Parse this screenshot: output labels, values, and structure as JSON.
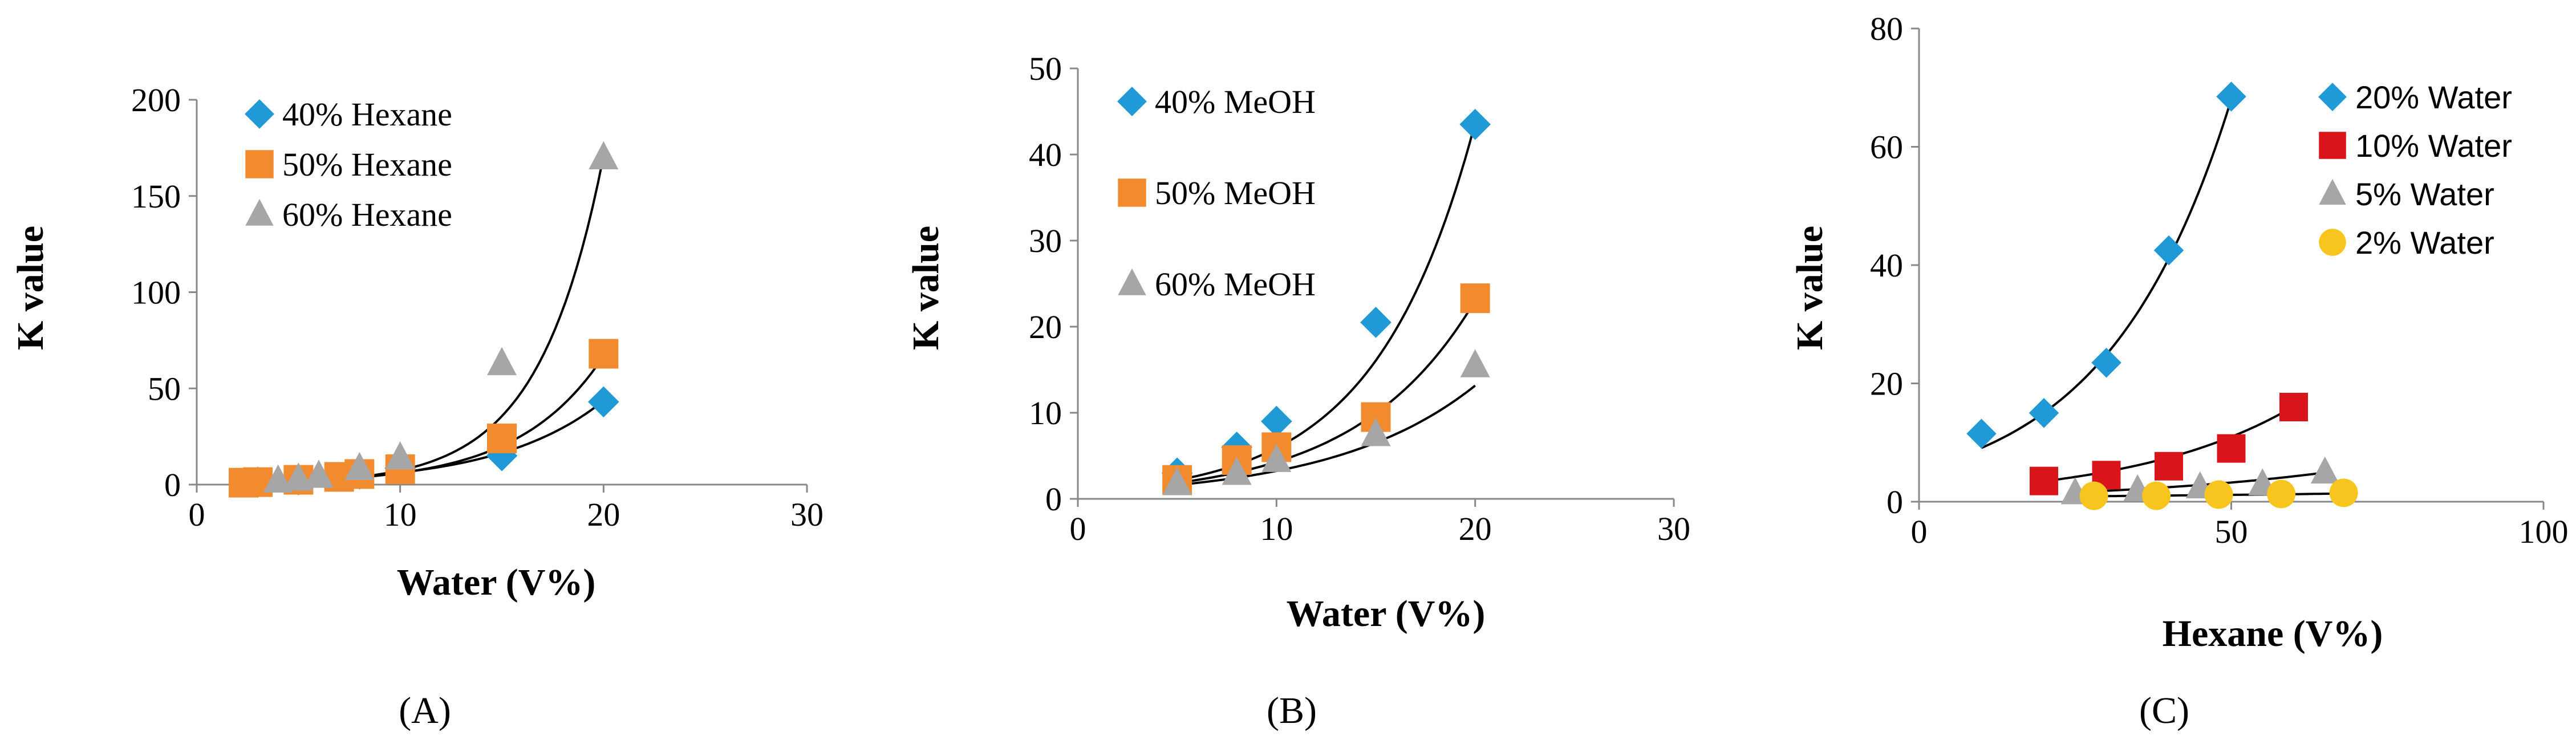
{
  "chart_data": [
    {
      "type": "scatter",
      "panel_label": "(A)",
      "xlabel": "Water  (V%)",
      "ylabel": "K value",
      "xlim": [
        0,
        30
      ],
      "ylim": [
        0,
        200
      ],
      "xticks": [
        "0",
        "10",
        "20",
        "30"
      ],
      "yticks": [
        "0",
        "50",
        "100",
        "150",
        "200"
      ],
      "legend_position": "top-left",
      "series": [
        {
          "name": "40% Hexane",
          "marker": "diamond",
          "color": "#1f9ad6",
          "x": [
            3,
            5,
            8,
            10,
            15,
            20
          ],
          "y": [
            1.2,
            2.5,
            5.5,
            8.5,
            15,
            43
          ],
          "fit": {
            "a": 0.9,
            "b": 0.194
          }
        },
        {
          "name": "50% Hexane",
          "marker": "square",
          "color": "#f28a2e",
          "x": [
            2.3,
            3,
            5,
            7,
            8,
            10,
            15,
            20
          ],
          "y": [
            1,
            1.3,
            2.5,
            4,
            5.5,
            8,
            24,
            68
          ],
          "fit": {
            "a": 0.55,
            "b": 0.24
          }
        },
        {
          "name": "60% Hexane",
          "marker": "triangle",
          "color": "#a6a6a6",
          "x": [
            4,
            5,
            6,
            8,
            10,
            15,
            20
          ],
          "y": [
            2,
            3,
            4.5,
            8.5,
            14,
            63,
            170
          ],
          "fit": {
            "a": 0.32,
            "b": 0.314
          }
        }
      ]
    },
    {
      "type": "scatter",
      "panel_label": "(B)",
      "xlabel": "Water (V%)",
      "ylabel": "K value",
      "xlim": [
        0,
        30
      ],
      "ylim": [
        0,
        50
      ],
      "xticks": [
        "0",
        "10",
        "20",
        "30"
      ],
      "yticks": [
        "0",
        "10",
        "20",
        "30",
        "40",
        "50"
      ],
      "legend_position": "top-left",
      "series": [
        {
          "name": "40% MeOH",
          "marker": "diamond",
          "color": "#1f9ad6",
          "x": [
            5,
            8,
            10,
            15,
            20
          ],
          "y": [
            3,
            6,
            9,
            20.5,
            43.5
          ],
          "fit": {
            "a": 0.8,
            "b": 0.2
          }
        },
        {
          "name": "50% MeOH",
          "marker": "square",
          "color": "#f28a2e",
          "x": [
            5,
            8,
            10,
            15,
            20
          ],
          "y": [
            2.2,
            4.5,
            6,
            9.5,
            23.3
          ],
          "fit": {
            "a": 0.8,
            "b": 0.168
          }
        },
        {
          "name": "60% MeOH",
          "marker": "triangle",
          "color": "#a6a6a6",
          "x": [
            5,
            8,
            10,
            15,
            20
          ],
          "y": [
            1.8,
            3,
            4.5,
            7.5,
            15.5
          ],
          "fit": {
            "a": 0.8,
            "b": 0.14
          }
        }
      ]
    },
    {
      "type": "scatter",
      "panel_label": "(C)",
      "xlabel": "Hexane (V%)",
      "ylabel": "K value",
      "xlim": [
        0,
        100
      ],
      "ylim": [
        0,
        80
      ],
      "xticks": [
        "0",
        "50",
        "100"
      ],
      "yticks": [
        "0",
        "20",
        "40",
        "60",
        "80"
      ],
      "legend_position": "top-right",
      "series": [
        {
          "name": "20% Water",
          "marker": "diamond",
          "color": "#1f9ad6",
          "x": [
            10,
            20,
            30,
            40,
            50
          ],
          "y": [
            11.5,
            15,
            23.5,
            42.5,
            68.5
          ],
          "fit": {
            "a": 5.5,
            "b": 0.0503
          }
        },
        {
          "name": "10% Water",
          "marker": "square",
          "color": "#d9141b",
          "x": [
            20,
            30,
            40,
            50,
            60
          ],
          "y": [
            3.5,
            4.5,
            6,
            9,
            16
          ],
          "fit": {
            "a": 1.6,
            "b": 0.0385
          }
        },
        {
          "name": "5% Water",
          "marker": "triangle",
          "color": "#a6a6a6",
          "x": [
            25,
            35,
            45,
            55,
            65
          ],
          "y": [
            1.5,
            2,
            2.5,
            3,
            5
          ],
          "fit": {
            "a": 0.8,
            "b": 0.028
          }
        },
        {
          "name": "2% Water",
          "marker": "circle",
          "color": "#f7c51e",
          "x": [
            28,
            38,
            48,
            58,
            68
          ],
          "y": [
            1,
            1,
            1.2,
            1.3,
            1.5
          ],
          "fit": {
            "a": 0.7,
            "b": 0.01
          }
        }
      ]
    }
  ]
}
